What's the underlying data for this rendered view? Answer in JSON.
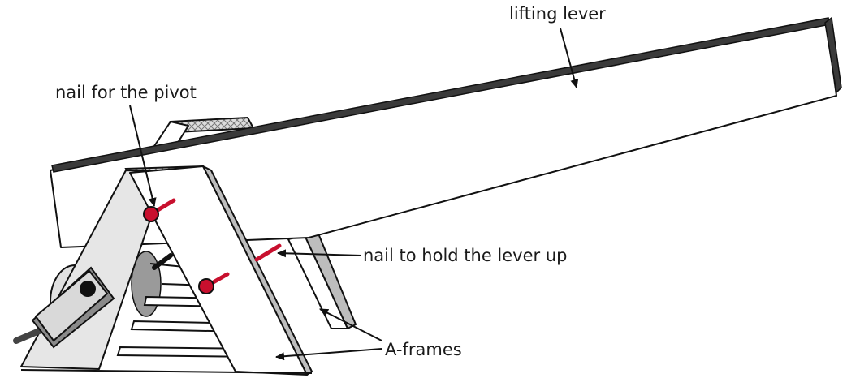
{
  "labels": {
    "lifting_lever": "lifting lever",
    "nail_pivot": "nail for the pivot",
    "nail_hold": "nail to hold the lever up",
    "a_frames": "A-frames"
  },
  "colors": {
    "nail_red": "#c8102e",
    "lever_edge": "#3a3a3a",
    "frame_grey": "#e6e6e6",
    "outline": "#111111"
  }
}
